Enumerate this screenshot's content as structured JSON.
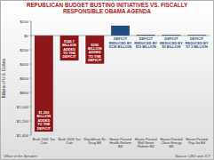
{
  "chart_data": {
    "type": "bar",
    "title": "REPUBLICAN BUDGET BUSTING INITIATIVES VS. FISCALLY RESPONSIBLE OBAMA AGENDA",
    "ylabel": "Billions of U.S. Dollars",
    "categories": [
      "Bush 2001 Tax Cuts",
      "Bush 2003 Tax Cuts",
      "Republican Rx Drug Bill",
      "House Passed Health Reform Bill",
      "House Passed Wall Street Reform Bill",
      "House Passed Clean Energy Bill",
      "House Passed Pay-Go Bill"
    ],
    "values": [
      -1350,
      -349.7,
      -395,
      138,
      10,
      9,
      7.3
    ],
    "value_labels": [
      "$1,350 BILLION ADDED TO THE DEFICIT",
      "$349.7 BILLION ADDED TO THE DEFICIT",
      "$395 BILLION ADDED TO THE DEFICIT",
      "DEFICIT REDUCED BY $138 BILLION",
      "DEFICIT REDUCED BY $10 BILLION",
      "DEFICIT REDUCED BY $9 BILLION",
      "DEFICIT REDUCED BY $7.3 BILLION"
    ],
    "data_labels": true,
    "colors": [
      "#8e1616",
      "#8e1616",
      "#8e1616",
      "#1f4f82",
      "#1f4f82",
      "#1f4f82",
      "#1f4f82"
    ],
    "ylim": [
      -1400,
      200
    ],
    "yticks": [
      {
        "value": 200,
        "label": "$200"
      },
      {
        "value": 0,
        "label": "$0"
      },
      {
        "value": -200,
        "label": "-$200"
      },
      {
        "value": -400,
        "label": "-$400"
      },
      {
        "value": -600,
        "label": "-$600"
      },
      {
        "value": -800,
        "label": "-$800"
      },
      {
        "value": -1000,
        "label": "-$1,000"
      },
      {
        "value": -1200,
        "label": "-$1,200"
      },
      {
        "value": -1400,
        "label": "-$1,400"
      }
    ],
    "grid": false,
    "credit": "Office of the Speaker",
    "source": "Source: CBO and JCT"
  }
}
